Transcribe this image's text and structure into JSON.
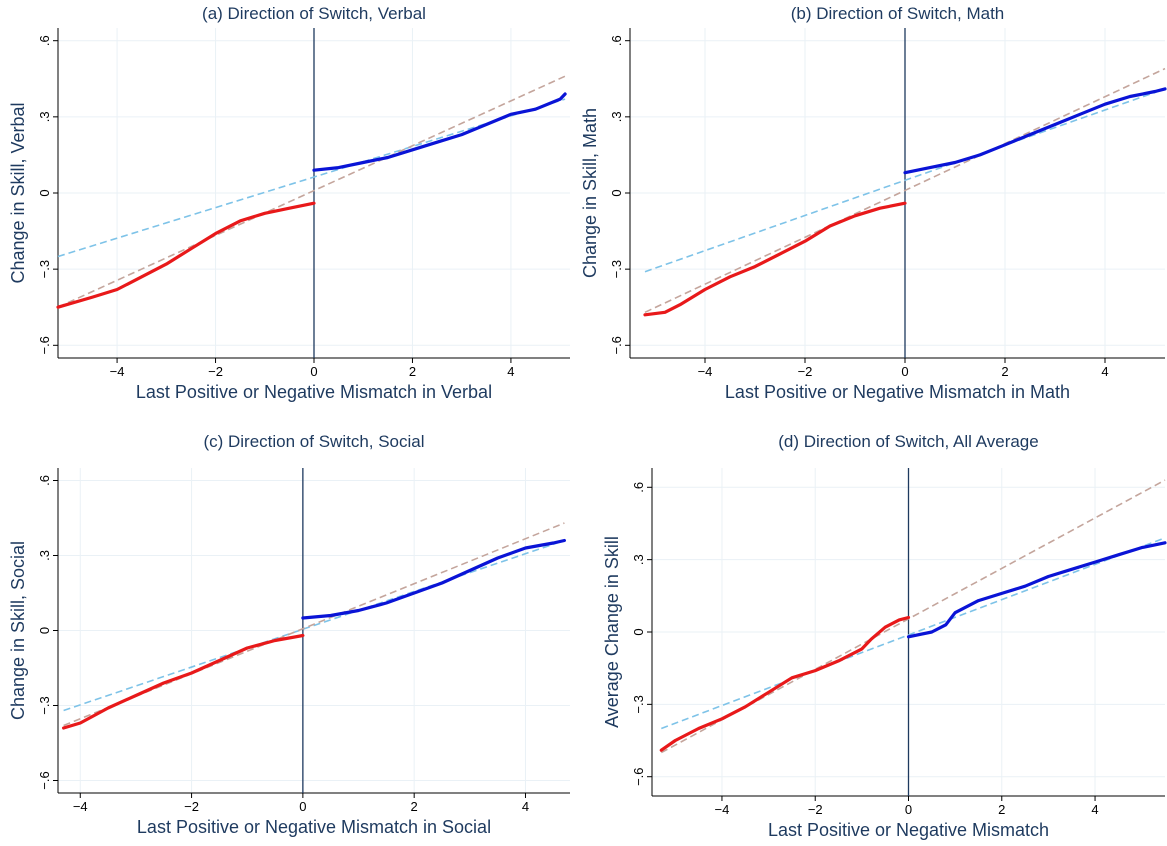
{
  "colors": {
    "negative": "#e8191a",
    "positive": "#0a14d6",
    "fit_all": "#c4a59c",
    "fit_positive": "#7ec3e8",
    "text": "#1e3a5f"
  },
  "chart_data": [
    {
      "id": "a",
      "type": "line",
      "title": "(a) Direction of  Switch, Verbal",
      "xlabel": "Last Positive or Negative Mismatch in Verbal",
      "ylabel": "Change in Skill, Verbal",
      "xlim": [
        -5.2,
        5.2
      ],
      "ylim": [
        -0.65,
        0.65
      ],
      "x_ticks": [
        -4,
        -2,
        0,
        2,
        4
      ],
      "x_tick_labels": [
        "−4",
        "−2",
        "0",
        "2",
        "4"
      ],
      "y_ticks": [
        -0.6,
        -0.3,
        0,
        0.3,
        0.6
      ],
      "y_tick_labels": [
        "−.6",
        "−.3",
        "0",
        ".3",
        ".6"
      ],
      "vline_x": 0,
      "grid": true,
      "series": [
        {
          "role": "negative",
          "style": "solid",
          "x": [
            -5.2,
            -4.5,
            -4,
            -3.5,
            -3,
            -2.5,
            -2,
            -1.5,
            -1,
            -0.5,
            0
          ],
          "y": [
            -0.45,
            -0.41,
            -0.38,
            -0.33,
            -0.28,
            -0.22,
            -0.16,
            -0.11,
            -0.08,
            -0.06,
            -0.04
          ]
        },
        {
          "role": "positive",
          "style": "solid",
          "x": [
            0,
            0.5,
            1,
            1.5,
            2,
            2.5,
            3,
            3.5,
            4,
            4.5,
            5,
            5.1
          ],
          "y": [
            0.09,
            0.1,
            0.12,
            0.14,
            0.17,
            0.2,
            0.23,
            0.27,
            0.31,
            0.33,
            0.37,
            0.39
          ]
        },
        {
          "role": "fit_all",
          "style": "dashed",
          "x": [
            -5.2,
            5.1
          ],
          "y": [
            -0.45,
            0.46
          ]
        },
        {
          "role": "fit_positive",
          "style": "dashed",
          "x": [
            -5.2,
            5.1
          ],
          "y": [
            -0.25,
            0.37
          ]
        }
      ]
    },
    {
      "id": "b",
      "type": "line",
      "title": "(b) Direction of  Switch, Math",
      "xlabel": "Last Positive or Negative Mismatch in Math",
      "ylabel": "Change in Skill, Math",
      "xlim": [
        -5.5,
        5.2
      ],
      "ylim": [
        -0.65,
        0.65
      ],
      "x_ticks": [
        -4,
        -2,
        0,
        2,
        4
      ],
      "x_tick_labels": [
        "−4",
        "−2",
        "0",
        "2",
        "4"
      ],
      "y_ticks": [
        -0.6,
        -0.3,
        0,
        0.3,
        0.6
      ],
      "y_tick_labels": [
        "−.6",
        "−.3",
        "0",
        ".3",
        ".6"
      ],
      "vline_x": 0,
      "grid": true,
      "series": [
        {
          "role": "negative",
          "style": "solid",
          "x": [
            -5.2,
            -4.8,
            -4.5,
            -4,
            -3.5,
            -3,
            -2.5,
            -2,
            -1.5,
            -1,
            -0.5,
            0
          ],
          "y": [
            -0.48,
            -0.47,
            -0.44,
            -0.38,
            -0.33,
            -0.29,
            -0.24,
            -0.19,
            -0.13,
            -0.09,
            -0.06,
            -0.04
          ]
        },
        {
          "role": "positive",
          "style": "solid",
          "x": [
            0,
            0.5,
            1,
            1.5,
            2,
            2.5,
            3,
            3.5,
            4,
            4.5,
            5,
            5.2
          ],
          "y": [
            0.08,
            0.1,
            0.12,
            0.15,
            0.19,
            0.23,
            0.27,
            0.31,
            0.35,
            0.38,
            0.4,
            0.41
          ]
        },
        {
          "role": "fit_all",
          "style": "dashed",
          "x": [
            -5.2,
            5.2
          ],
          "y": [
            -0.47,
            0.49
          ]
        },
        {
          "role": "fit_positive",
          "style": "dashed",
          "x": [
            -5.2,
            5.2
          ],
          "y": [
            -0.31,
            0.41
          ]
        }
      ]
    },
    {
      "id": "c",
      "type": "line",
      "title": "(c) Direction of  Switch, Social",
      "xlabel": "Last Positive or Negative Mismatch in Social",
      "ylabel": "Change in Skill, Social",
      "xlim": [
        -4.4,
        4.8
      ],
      "ylim": [
        -0.65,
        0.65
      ],
      "x_ticks": [
        -4,
        -2,
        0,
        2,
        4
      ],
      "x_tick_labels": [
        "−4",
        "−2",
        "0",
        "2",
        "4"
      ],
      "y_ticks": [
        -0.6,
        -0.3,
        0,
        0.3,
        0.6
      ],
      "y_tick_labels": [
        "−.6",
        "−.3",
        "0",
        ".3",
        ".6"
      ],
      "vline_x": 0,
      "grid": true,
      "series": [
        {
          "role": "negative",
          "style": "solid",
          "x": [
            -4.3,
            -4,
            -3.5,
            -3,
            -2.5,
            -2,
            -1.5,
            -1,
            -0.5,
            0
          ],
          "y": [
            -0.39,
            -0.37,
            -0.31,
            -0.26,
            -0.21,
            -0.17,
            -0.12,
            -0.07,
            -0.04,
            -0.02
          ]
        },
        {
          "role": "positive",
          "style": "solid",
          "x": [
            0,
            0.5,
            1,
            1.5,
            2,
            2.5,
            3,
            3.5,
            4,
            4.5,
            4.7
          ],
          "y": [
            0.05,
            0.06,
            0.08,
            0.11,
            0.15,
            0.19,
            0.24,
            0.29,
            0.33,
            0.35,
            0.36
          ]
        },
        {
          "role": "fit_all",
          "style": "dashed",
          "x": [
            -4.3,
            4.7
          ],
          "y": [
            -0.38,
            0.43
          ]
        },
        {
          "role": "fit_positive",
          "style": "dashed",
          "x": [
            -4.3,
            4.7
          ],
          "y": [
            -0.32,
            0.36
          ]
        }
      ]
    },
    {
      "id": "d",
      "type": "line",
      "title": "(d) Direction of Switch, All Average",
      "xlabel": "Last Positive or Negative Mismatch",
      "ylabel": "Average Change in Skill",
      "xlim": [
        -5.5,
        5.5
      ],
      "ylim": [
        -0.68,
        0.68
      ],
      "x_ticks": [
        -4,
        -2,
        0,
        2,
        4
      ],
      "x_tick_labels": [
        "−4",
        "−2",
        "0",
        "2",
        "4"
      ],
      "y_ticks": [
        -0.6,
        -0.3,
        0,
        0.3,
        0.6
      ],
      "y_tick_labels": [
        "−.6",
        "−.3",
        "0",
        ".3",
        ".6"
      ],
      "vline_x": 0,
      "grid": true,
      "series": [
        {
          "role": "negative",
          "style": "solid",
          "x": [
            -5.3,
            -5,
            -4.5,
            -4,
            -3.5,
            -3,
            -2.5,
            -2,
            -1.5,
            -1,
            -0.8,
            -0.5,
            -0.2,
            0
          ],
          "y": [
            -0.49,
            -0.45,
            -0.4,
            -0.36,
            -0.31,
            -0.25,
            -0.19,
            -0.16,
            -0.12,
            -0.07,
            -0.03,
            0.02,
            0.05,
            0.06
          ]
        },
        {
          "role": "positive",
          "style": "solid",
          "x": [
            0,
            0.5,
            0.8,
            1,
            1.5,
            2,
            2.5,
            3,
            3.5,
            4,
            4.5,
            5,
            5.5
          ],
          "y": [
            -0.02,
            0,
            0.03,
            0.08,
            0.13,
            0.16,
            0.19,
            0.23,
            0.26,
            0.29,
            0.32,
            0.35,
            0.37
          ]
        },
        {
          "role": "fit_all",
          "style": "dashed",
          "x": [
            -5.3,
            5.5
          ],
          "y": [
            -0.5,
            0.63
          ]
        },
        {
          "role": "fit_positive",
          "style": "dashed",
          "x": [
            -5.3,
            5.5
          ],
          "y": [
            -0.4,
            0.39
          ]
        }
      ]
    }
  ]
}
